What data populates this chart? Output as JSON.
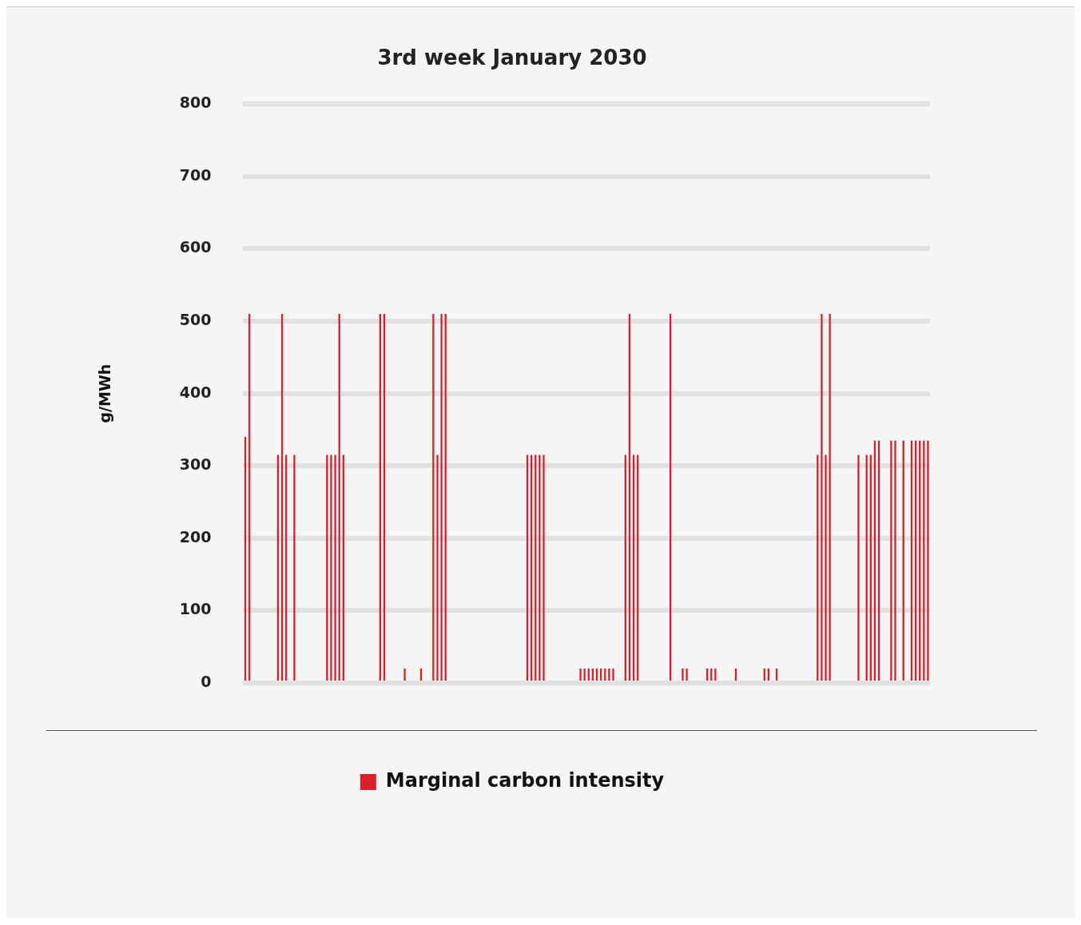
{
  "chart_data": {
    "type": "bar",
    "title": "3rd week January 2030",
    "ylabel": "g/MWh",
    "categories": [
      null,
      null,
      null,
      null,
      null,
      null,
      null,
      null,
      null,
      null,
      null,
      null,
      null,
      null,
      null,
      null,
      null,
      null,
      null,
      null,
      null,
      null,
      null,
      null,
      null,
      null,
      null,
      null,
      null,
      null,
      null,
      null,
      null,
      null,
      null,
      null,
      null,
      null,
      null,
      null,
      null,
      null,
      null,
      null,
      null,
      null,
      null,
      null,
      null,
      null,
      null,
      null,
      null,
      null,
      null,
      null,
      null,
      null,
      null,
      null,
      null,
      null,
      null,
      null,
      null,
      null,
      null,
      null,
      null,
      null,
      null,
      null,
      null,
      null,
      null,
      null,
      null,
      null,
      null,
      null,
      null,
      null,
      null,
      null,
      null,
      null,
      null,
      null,
      null,
      null,
      null,
      null,
      null,
      null,
      null,
      null,
      null,
      null,
      null,
      null,
      null,
      null,
      null,
      null,
      null,
      null,
      null,
      null,
      null,
      null,
      null,
      null,
      null,
      null,
      null,
      null,
      null,
      null,
      null,
      null,
      null,
      null,
      null,
      null,
      null,
      null,
      null,
      null,
      null,
      null,
      null,
      null,
      null,
      null,
      null,
      null,
      null,
      null,
      null,
      null,
      null,
      null,
      null,
      null,
      null,
      null,
      null,
      null,
      null,
      null,
      null,
      null,
      null,
      null,
      null,
      null,
      null,
      null,
      null,
      null,
      null,
      null,
      null,
      null,
      null,
      null,
      null,
      null
    ],
    "series": [
      {
        "name": "Marginal carbon intensity",
        "color": "#d7202a",
        "values": [
          340,
          510,
          0,
          0,
          0,
          0,
          0,
          0,
          315,
          510,
          315,
          0,
          315,
          0,
          0,
          0,
          0,
          0,
          0,
          0,
          315,
          315,
          315,
          510,
          315,
          0,
          0,
          0,
          0,
          0,
          0,
          0,
          0,
          510,
          510,
          0,
          0,
          0,
          0,
          20,
          0,
          0,
          0,
          20,
          0,
          0,
          510,
          315,
          510,
          510,
          0,
          0,
          0,
          0,
          0,
          0,
          0,
          0,
          0,
          0,
          0,
          0,
          0,
          0,
          0,
          0,
          0,
          0,
          0,
          315,
          315,
          315,
          315,
          315,
          0,
          0,
          0,
          0,
          0,
          0,
          0,
          0,
          20,
          20,
          20,
          20,
          20,
          20,
          20,
          20,
          20,
          0,
          0,
          315,
          510,
          315,
          315,
          0,
          0,
          0,
          0,
          0,
          0,
          0,
          510,
          0,
          0,
          20,
          20,
          0,
          0,
          0,
          0,
          20,
          20,
          20,
          0,
          0,
          0,
          0,
          20,
          0,
          0,
          0,
          0,
          0,
          0,
          20,
          20,
          0,
          20,
          0,
          0,
          0,
          0,
          0,
          0,
          0,
          0,
          0,
          315,
          510,
          315,
          510,
          0,
          0,
          0,
          0,
          0,
          0,
          315,
          0,
          315,
          315,
          335,
          335,
          0,
          0,
          335,
          335,
          0,
          335,
          0,
          335,
          335,
          335,
          335,
          335
        ]
      }
    ],
    "ylim": [
      0,
      800
    ],
    "yticks": [
      0,
      100,
      200,
      300,
      400,
      500,
      600,
      700,
      800
    ],
    "grid": "y",
    "legend": "bottom",
    "tick_labels": "y"
  }
}
